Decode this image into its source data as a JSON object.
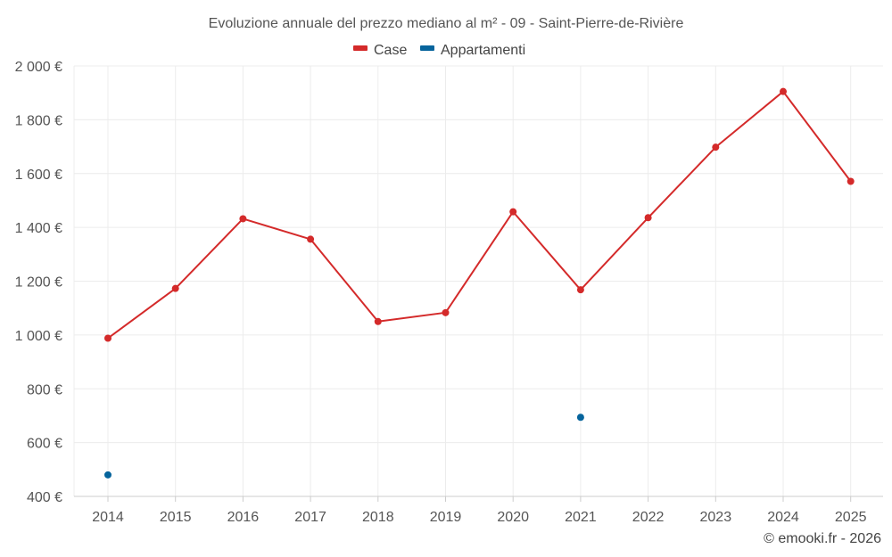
{
  "chart_data": {
    "type": "line",
    "title": "Evoluzione annuale del prezzo mediano al m² - 09 - Saint-Pierre-de-Rivière",
    "categories": [
      "2014",
      "2015",
      "2016",
      "2017",
      "2018",
      "2019",
      "2020",
      "2021",
      "2022",
      "2023",
      "2024",
      "2025"
    ],
    "series": [
      {
        "name": "Case",
        "color": "#d42a2a",
        "values": [
          988,
          1173,
          1432,
          1356,
          1050,
          1083,
          1458,
          1168,
          1436,
          1698,
          1905,
          1571
        ]
      },
      {
        "name": "Appartamenti",
        "color": "#06649c",
        "values": [
          480,
          null,
          null,
          null,
          null,
          null,
          null,
          694,
          null,
          null,
          null,
          null
        ]
      }
    ],
    "ylim": [
      400,
      2000
    ],
    "yticks": [
      {
        "value": 400,
        "label": "400 €"
      },
      {
        "value": 600,
        "label": "600 €"
      },
      {
        "value": 800,
        "label": "800 €"
      },
      {
        "value": 1000,
        "label": "1 000 €"
      },
      {
        "value": 1200,
        "label": "1 200 €"
      },
      {
        "value": 1400,
        "label": "1 400 €"
      },
      {
        "value": 1600,
        "label": "1 600 €"
      },
      {
        "value": 1800,
        "label": "1 800 €"
      },
      {
        "value": 2000,
        "label": "2 000 €"
      }
    ],
    "xlabel": "",
    "ylabel": "",
    "grid": true,
    "legend_position": "top-center"
  },
  "credit": "© emooki.fr - 2026"
}
